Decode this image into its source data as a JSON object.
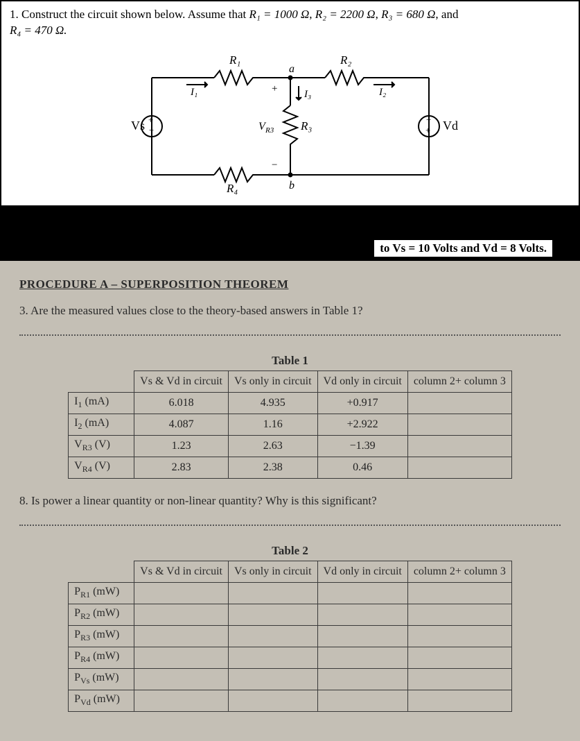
{
  "problem": {
    "text_prefix": "1. Construct the circuit shown below. Assume that ",
    "r1": "R₁ = 1000 Ω",
    "r2": "R₂ = 2200 Ω",
    "r3": "R₃ = 680 Ω",
    "and": ", and ",
    "r4": "R₄ = 470 Ω."
  },
  "circuit": {
    "labels": {
      "R1": "R₁",
      "R2": "R₂",
      "R3": "R₃",
      "R4": "R₄",
      "Vs": "Vs",
      "Vd": "Vd",
      "VR3": "V",
      "I1": "I₁",
      "I2": "I₂",
      "I3": "I₃",
      "a": "a",
      "b": "b",
      "plus": "+",
      "minus": "−"
    }
  },
  "voltages_line": "to Vs = 10 Volts and Vd = 8 Volts.",
  "procedure": {
    "title": "PROCEDURE A – SUPERPOSITION THEOREM",
    "q3": "3. Are the measured values close to the theory-based answers in Table 1?",
    "q8": "8.   Is power a linear quantity or non-linear quantity? Why is this significant?"
  },
  "table1": {
    "title": "Table 1",
    "headers": {
      "c1": "Vs & Vd in circuit",
      "c2": "Vs only in circuit",
      "c3": "Vd only in circuit",
      "c4": "column 2+ column 3"
    },
    "rows": [
      {
        "label": "I₁ (mA)",
        "c1": "6.018",
        "c2": "4.935",
        "c3": "+0.917",
        "c4": ""
      },
      {
        "label": "I₂ (mA)",
        "c1": "4.087",
        "c2": "1.16",
        "c3": "+2.922",
        "c4": ""
      },
      {
        "label": "V_R3 (V)",
        "c1": "1.23",
        "c2": "2.63",
        "c3": "−1.39",
        "c4": ""
      },
      {
        "label": "V_R4 (V)",
        "c1": "2.83",
        "c2": "2.38",
        "c3": "0.46",
        "c4": ""
      }
    ],
    "row_labels_html": [
      "I<sub>1</sub> (mA)",
      "I<sub>2</sub> (mA)",
      "V<sub>R3</sub> (V)",
      "V<sub>R4</sub> (V)"
    ]
  },
  "table2": {
    "title": "Table 2",
    "headers": {
      "c1": "Vs & Vd in circuit",
      "c2": "Vs only in circuit",
      "c3": "Vd only in circuit",
      "c4": "column 2+ column 3"
    },
    "rows": [
      {
        "label": "P_R1 (mW)"
      },
      {
        "label": "P_R2 (mW)"
      },
      {
        "label": "P_R3 (mW)"
      },
      {
        "label": "P_R4 (mW)"
      },
      {
        "label": "P_Vs (mW)"
      },
      {
        "label": "P_Vd (mW)"
      }
    ],
    "row_labels_html": [
      "P<sub>R1</sub> (mW)",
      "P<sub>R2</sub> (mW)",
      "P<sub>R3</sub> (mW)",
      "P<sub>R4</sub> (mW)",
      "P<sub>Vs</sub> (mW)",
      "P<sub>Vd</sub> (mW)"
    ]
  },
  "style": {
    "page_bg": "#c4bfb5",
    "problem_bg": "#ffffff",
    "border_color": "#3a3a3a",
    "hand_color": "#222222"
  }
}
